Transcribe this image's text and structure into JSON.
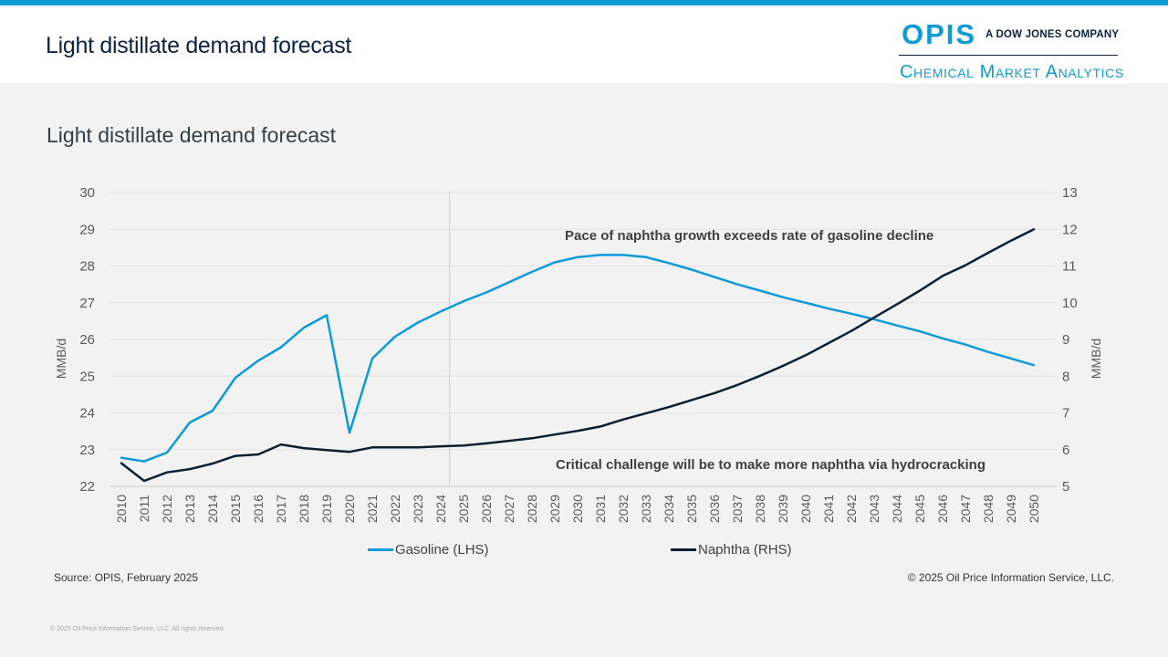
{
  "header": {
    "title": "Light distillate demand forecast",
    "logo": {
      "brand": "OPIS",
      "tagline": "A DOW JONES COMPANY",
      "subbrand": "Chemical Market Analytics"
    }
  },
  "colors": {
    "accent": "#0d9ad6",
    "gasoline": "#0d9ad6",
    "naphtha": "#0b1f33",
    "navy": "#0b2341"
  },
  "chart_data": {
    "type": "line",
    "title": "Light distillate demand forecast",
    "xlabel": "",
    "ylabel_left": "MMB/d",
    "ylabel_right": "MMB/d",
    "ylim_left": [
      22,
      30
    ],
    "ylim_right": [
      5,
      13
    ],
    "yticks_left": [
      "22",
      "23",
      "24",
      "25",
      "26",
      "27",
      "28",
      "29",
      "30"
    ],
    "yticks_right": [
      "5",
      "6",
      "7",
      "8",
      "9",
      "10",
      "11",
      "12",
      "13"
    ],
    "grid": true,
    "forecast_divider_year": 2024,
    "categories": [
      "2010",
      "2011",
      "2012",
      "2013",
      "2014",
      "2015",
      "2016",
      "2017",
      "2018",
      "2019",
      "2020",
      "2021",
      "2022",
      "2023",
      "2024",
      "2025",
      "2026",
      "2027",
      "2028",
      "2029",
      "2030",
      "2031",
      "2032",
      "2033",
      "2034",
      "2035",
      "2036",
      "2037",
      "2038",
      "2039",
      "2040",
      "2041",
      "2042",
      "2043",
      "2044",
      "2045",
      "2046",
      "2047",
      "2048",
      "2049",
      "2050"
    ],
    "series": [
      {
        "name": "Gasoline (LHS)",
        "axis": "left",
        "values": [
          22.78,
          22.68,
          22.92,
          23.74,
          24.06,
          24.96,
          25.42,
          25.79,
          26.32,
          26.66,
          23.46,
          25.48,
          26.08,
          26.46,
          26.76,
          27.04,
          27.28,
          27.56,
          27.84,
          28.1,
          28.24,
          28.3,
          28.3,
          28.24,
          28.08,
          27.9,
          27.7,
          27.5,
          27.33,
          27.15,
          27.0,
          26.84,
          26.7,
          26.55,
          26.38,
          26.22,
          26.03,
          25.86,
          25.66,
          25.48,
          25.3
        ]
      },
      {
        "name": "Naphtha (RHS)",
        "axis": "right",
        "values": [
          5.63,
          5.15,
          5.38,
          5.47,
          5.62,
          5.83,
          5.87,
          6.14,
          6.04,
          5.99,
          5.94,
          6.06,
          6.06,
          6.06,
          6.09,
          6.11,
          6.17,
          6.24,
          6.31,
          6.41,
          6.51,
          6.63,
          6.82,
          6.99,
          7.16,
          7.35,
          7.54,
          7.76,
          8.01,
          8.28,
          8.57,
          8.9,
          9.23,
          9.6,
          9.96,
          10.33,
          10.73,
          11.02,
          11.36,
          11.69,
          12.0
        ]
      }
    ],
    "annotations": [
      {
        "text": "Pace of naphtha growth exceeds rate of gasoline decline",
        "near": "upper-right"
      },
      {
        "text": "Critical challenge will be to make more naphtha via hydrocracking",
        "near": "lower-right"
      }
    ],
    "legend_position": "bottom"
  },
  "footer": {
    "source": "Source: OPIS, February 2025",
    "copyright": "© 2025 Oil Price Information Service, LLC.",
    "note": "© 2025 Oil Price Information Service, LLC. All rights reserved."
  }
}
